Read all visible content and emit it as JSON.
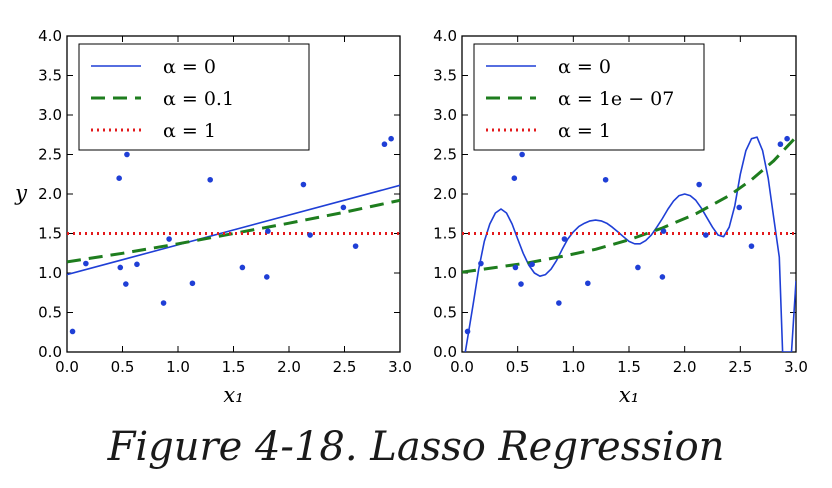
{
  "caption": "Figure 4-18. Lasso Regression",
  "chart_data": [
    {
      "type": "line",
      "xlabel": "x₁",
      "ylabel": "y",
      "xlim": [
        0.0,
        3.0
      ],
      "ylim": [
        0.0,
        4.0
      ],
      "xticks": [
        "0.0",
        "0.5",
        "1.0",
        "1.5",
        "2.0",
        "2.5",
        "3.0"
      ],
      "yticks": [
        "0.0",
        "0.5",
        "1.0",
        "1.5",
        "2.0",
        "2.5",
        "3.0",
        "3.5",
        "4.0"
      ],
      "legend_position": "top-left",
      "grid": false,
      "scatter": {
        "color": "#1f3fd6",
        "x": [
          0.05,
          0.17,
          0.47,
          0.48,
          0.53,
          0.54,
          0.63,
          0.87,
          0.92,
          1.13,
          1.29,
          1.58,
          1.8,
          1.81,
          2.13,
          2.19,
          2.49,
          2.6,
          2.86,
          2.92
        ],
        "y": [
          0.26,
          1.12,
          2.2,
          1.07,
          0.86,
          2.5,
          1.11,
          0.62,
          1.43,
          0.87,
          2.18,
          1.07,
          0.95,
          1.53,
          2.12,
          1.48,
          1.83,
          1.34,
          2.63,
          2.7
        ]
      },
      "series": [
        {
          "name": "α = 0",
          "style": "solid",
          "color": "#1f3fd6",
          "x": [
            0.0,
            3.0
          ],
          "y": [
            0.98,
            2.11
          ]
        },
        {
          "name": "α = 0.1",
          "style": "dashed",
          "color": "#1e7d1e",
          "x": [
            0.0,
            0.5,
            1.0,
            1.5,
            2.0,
            2.5,
            3.0
          ],
          "y": [
            1.14,
            1.25,
            1.37,
            1.5,
            1.63,
            1.77,
            1.92
          ]
        },
        {
          "name": "α = 1",
          "style": "dotted",
          "color": "#e31a1c",
          "x": [
            0.0,
            3.0
          ],
          "y": [
            1.5,
            1.5
          ]
        }
      ]
    },
    {
      "type": "line",
      "xlabel": "x₁",
      "ylabel": "",
      "xlim": [
        0.0,
        3.0
      ],
      "ylim": [
        0.0,
        4.0
      ],
      "xticks": [
        "0.0",
        "0.5",
        "1.0",
        "1.5",
        "2.0",
        "2.5",
        "3.0"
      ],
      "yticks": [
        "0.0",
        "0.5",
        "1.0",
        "1.5",
        "2.0",
        "2.5",
        "3.0",
        "3.5",
        "4.0"
      ],
      "legend_position": "top-left",
      "grid": false,
      "scatter": {
        "color": "#1f3fd6",
        "x": [
          0.05,
          0.17,
          0.47,
          0.48,
          0.53,
          0.54,
          0.63,
          0.87,
          0.92,
          1.13,
          1.29,
          1.58,
          1.8,
          1.81,
          2.13,
          2.19,
          2.49,
          2.6,
          2.86,
          2.92
        ],
        "y": [
          0.26,
          1.12,
          2.2,
          1.07,
          0.86,
          2.5,
          1.11,
          0.62,
          1.43,
          0.87,
          2.18,
          1.07,
          0.95,
          1.53,
          2.12,
          1.48,
          1.83,
          1.34,
          2.63,
          2.7
        ]
      },
      "series": [
        {
          "name": "α = 0",
          "style": "solid",
          "color": "#1f3fd6",
          "x": [
            0.03,
            0.06,
            0.1,
            0.15,
            0.2,
            0.25,
            0.3,
            0.35,
            0.4,
            0.45,
            0.5,
            0.55,
            0.6,
            0.65,
            0.7,
            0.75,
            0.8,
            0.85,
            0.9,
            0.95,
            1.0,
            1.05,
            1.1,
            1.15,
            1.2,
            1.25,
            1.3,
            1.35,
            1.4,
            1.45,
            1.5,
            1.55,
            1.6,
            1.65,
            1.7,
            1.75,
            1.8,
            1.85,
            1.9,
            1.95,
            2.0,
            2.05,
            2.1,
            2.15,
            2.2,
            2.25,
            2.3,
            2.35,
            2.4,
            2.45,
            2.5,
            2.55,
            2.6,
            2.65,
            2.7,
            2.75,
            2.8,
            2.85,
            2.88,
            2.9,
            2.93,
            2.96,
            3.0
          ],
          "y": [
            0.0,
            0.26,
            0.6,
            1.05,
            1.4,
            1.62,
            1.76,
            1.81,
            1.76,
            1.62,
            1.43,
            1.25,
            1.1,
            1.0,
            0.96,
            0.98,
            1.05,
            1.16,
            1.3,
            1.43,
            1.52,
            1.59,
            1.63,
            1.66,
            1.67,
            1.66,
            1.63,
            1.58,
            1.52,
            1.46,
            1.4,
            1.37,
            1.37,
            1.41,
            1.48,
            1.58,
            1.69,
            1.81,
            1.91,
            1.98,
            2.0,
            1.98,
            1.92,
            1.82,
            1.7,
            1.58,
            1.48,
            1.46,
            1.58,
            1.85,
            2.25,
            2.55,
            2.7,
            2.72,
            2.55,
            2.2,
            1.7,
            1.2,
            0.0,
            0.0,
            0.0,
            0.0,
            0.9
          ]
        },
        {
          "name": "α = 1e − 07",
          "style": "dashed",
          "color": "#1e7d1e",
          "x": [
            0.0,
            0.3,
            0.6,
            0.9,
            1.2,
            1.5,
            1.8,
            2.1,
            2.4,
            2.6,
            2.8,
            3.0
          ],
          "y": [
            1.01,
            1.07,
            1.13,
            1.21,
            1.3,
            1.42,
            1.57,
            1.75,
            1.98,
            2.18,
            2.42,
            2.72
          ]
        },
        {
          "name": "α = 1",
          "style": "dotted",
          "color": "#e31a1c",
          "x": [
            0.0,
            3.0
          ],
          "y": [
            1.5,
            1.5
          ]
        }
      ]
    }
  ]
}
